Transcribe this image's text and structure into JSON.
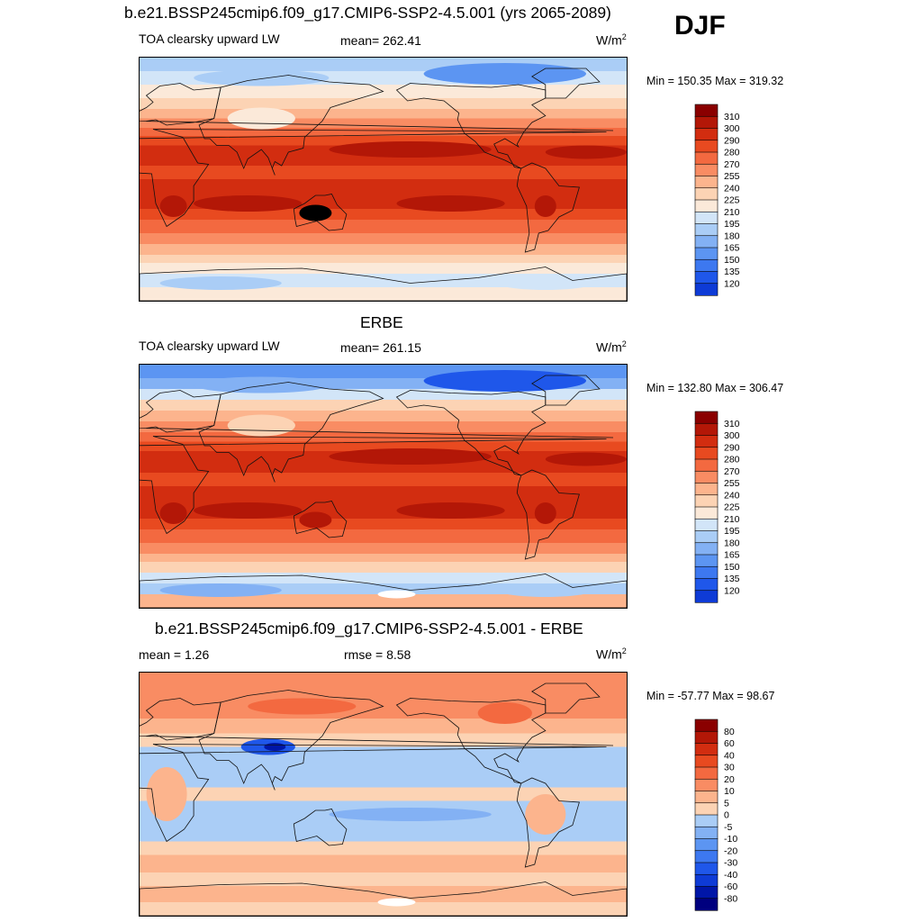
{
  "header": {
    "title": "b.e21.BSSP245cmip6.f09_g17.CMIP6-SSP2-4.5.001 (yrs 2065-2089)",
    "season": "DJF"
  },
  "colors": {
    "land_outline": "#000000",
    "abs_scale": [
      "#00007f",
      "#0016a8",
      "#0e3bd6",
      "#1f57ea",
      "#3d78f0",
      "#5c95f2",
      "#83b1f4",
      "#aacdf6",
      "#d2e5f8",
      "#fbe9d9",
      "#fcd3b4",
      "#fcb48d",
      "#f98c63",
      "#f36940",
      "#e84a20",
      "#d22d10",
      "#b31707",
      "#8a0000"
    ],
    "diff_scale": [
      "#00007f",
      "#0016a8",
      "#0e3bd6",
      "#1f57ea",
      "#3d78f0",
      "#5c95f2",
      "#83b1f4",
      "#aacdf6",
      "#d2e5f8",
      "#ffffff",
      "#fbe9d9",
      "#fcd3b4",
      "#fcb48d",
      "#f98c63",
      "#f36940",
      "#e84a20",
      "#d22d10",
      "#b31707",
      "#8a0000"
    ]
  },
  "chart_data": [
    {
      "type": "heatmap",
      "title": "b.e21.BSSP245cmip6.f09_g17.CMIP6-SSP2-4.5.001 (yrs 2065-2089)",
      "variable": "TOA clearsky upward LW",
      "mean_label": "mean= 262.41",
      "units": "W/m",
      "units_exp": "2",
      "minmax": "Min = 150.35 Max = 319.32",
      "min": 150.35,
      "max": 319.32,
      "mean": 262.41,
      "colorbar_levels": [
        "310",
        "300",
        "290",
        "280",
        "270",
        "255",
        "240",
        "225",
        "210",
        "195",
        "180",
        "165",
        "150",
        "135",
        "120"
      ],
      "grid": false
    },
    {
      "type": "heatmap",
      "title": "ERBE",
      "variable": "TOA clearsky upward LW",
      "mean_label": "mean= 261.15",
      "units": "W/m",
      "units_exp": "2",
      "minmax": "Min = 132.80 Max = 306.47",
      "min": 132.8,
      "max": 306.47,
      "mean": 261.15,
      "colorbar_levels": [
        "310",
        "300",
        "290",
        "280",
        "270",
        "255",
        "240",
        "225",
        "210",
        "195",
        "180",
        "165",
        "150",
        "135",
        "120"
      ],
      "grid": false
    },
    {
      "type": "heatmap",
      "title": "b.e21.BSSP245cmip6.f09_g17.CMIP6-SSP2-4.5.001 - ERBE",
      "mean_label": "mean =   1.26",
      "rmse_label": "rmse =   8.58",
      "units": "W/m",
      "units_exp": "2",
      "minmax": "Min = -57.77 Max =  98.67",
      "min": -57.77,
      "max": 98.67,
      "mean": 1.26,
      "rmse": 8.58,
      "colorbar_levels": [
        "80",
        "60",
        "40",
        "30",
        "20",
        "10",
        "5",
        "0",
        "-5",
        "-10",
        "-20",
        "-30",
        "-40",
        "-60",
        "-80"
      ],
      "grid": false
    }
  ]
}
